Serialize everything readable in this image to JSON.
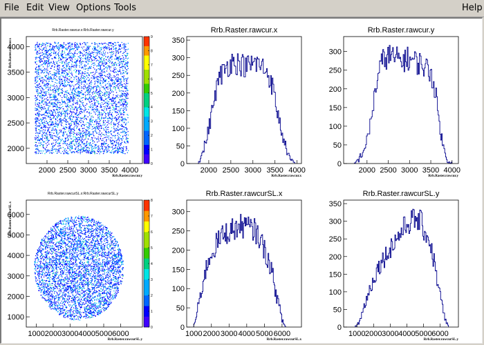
{
  "menu": {
    "file": "File",
    "edit": "Edit",
    "view": "View",
    "options": "Options",
    "tools": "Tools",
    "help": "Help"
  },
  "colors": {
    "histogram_line": "#00008b",
    "frame": "#000000",
    "background": "#ffffff",
    "palette": [
      "#3f00ff",
      "#0000ff",
      "#0066ff",
      "#00aaff",
      "#00e5e5",
      "#00d080",
      "#33cc00",
      "#a0e000",
      "#ffff00",
      "#ff9900",
      "#ff3300"
    ]
  },
  "chart_data": [
    {
      "type": "heatmap",
      "title": "Rrb.Raster.rawcur.x:Rrb.Raster.rawcur.y",
      "xlabel": "Rrb.Raster.rawcur.y",
      "ylabel": "Rrb.Raster.rawcur.x",
      "xlim": [
        1500,
        4300
      ],
      "ylim": [
        1700,
        4200
      ],
      "xticks": [
        2000,
        2500,
        3000,
        3500,
        4000
      ],
      "yticks": [
        2000,
        2500,
        3000,
        3500,
        4000
      ],
      "zticks": [
        0,
        1,
        2,
        3,
        4,
        5,
        6,
        7,
        8,
        9
      ],
      "shape": "square",
      "x_range": [
        1700,
        3950
      ],
      "y_range": [
        1900,
        4100
      ]
    },
    {
      "type": "histogram",
      "title": "Rrb.Raster.rawcur.x",
      "xlabel": "Rrb.Raster.rawcur.x",
      "xlim": [
        1500,
        4100
      ],
      "ylim": [
        0,
        360
      ],
      "xticks": [
        2000,
        2500,
        3000,
        3500,
        4000
      ],
      "yticks": [
        0,
        50,
        100,
        150,
        200,
        250,
        300,
        350
      ],
      "profile_x": [
        1750,
        1850,
        1950,
        2050,
        2150,
        2250,
        2350,
        2450,
        2550,
        2650,
        2750,
        2850,
        2950,
        3050,
        3150,
        3250,
        3350,
        3450,
        3550,
        3650,
        3750,
        3850,
        3950
      ],
      "profile_y": [
        0,
        25,
        70,
        130,
        200,
        245,
        265,
        280,
        290,
        285,
        280,
        275,
        280,
        285,
        280,
        270,
        255,
        215,
        150,
        90,
        45,
        10,
        0
      ]
    },
    {
      "type": "histogram",
      "title": "Rrb.Raster.rawcur.y",
      "xlabel": "Rrb.Raster.rawcur.y",
      "xlim": [
        1450,
        4150
      ],
      "ylim": [
        0,
        340
      ],
      "xticks": [
        2000,
        2500,
        3000,
        3500,
        4000
      ],
      "yticks": [
        0,
        50,
        100,
        150,
        200,
        250,
        300
      ],
      "profile_x": [
        1700,
        1800,
        1900,
        2000,
        2100,
        2200,
        2300,
        2400,
        2500,
        2600,
        2700,
        2800,
        2900,
        3000,
        3100,
        3200,
        3300,
        3400,
        3500,
        3600,
        3700,
        3800,
        3900,
        4000
      ],
      "profile_y": [
        0,
        10,
        30,
        60,
        120,
        200,
        255,
        280,
        290,
        285,
        280,
        275,
        280,
        280,
        275,
        270,
        265,
        255,
        245,
        200,
        110,
        40,
        8,
        0
      ]
    },
    {
      "type": "heatmap",
      "title": "Rrb.Raster.rawcurSL.x:Rrb.Raster.rawcurSL.y",
      "xlabel": "Rrb.Raster.rawcurSL.y",
      "ylabel": "Rrb.Raster.rawcurSL.x",
      "xlim": [
        400,
        7300
      ],
      "ylim": [
        500,
        6700
      ],
      "xticks": [
        1000,
        2000,
        3000,
        4000,
        5000,
        6000
      ],
      "yticks": [
        1000,
        2000,
        3000,
        4000,
        5000,
        6000
      ],
      "zticks": [
        0,
        1,
        2,
        3,
        4,
        5,
        6,
        7,
        8
      ],
      "shape": "circle",
      "center": [
        3500,
        3400
      ],
      "radius": [
        2650,
        2550
      ]
    },
    {
      "type": "histogram",
      "title": "Rrb.Raster.rawcurSL.x",
      "xlabel": "Rrb.Raster.rawcurSL.x",
      "xlim": [
        600,
        7100
      ],
      "ylim": [
        0,
        330
      ],
      "xticks": [
        1000,
        2000,
        3000,
        4000,
        5000,
        6000
      ],
      "yticks": [
        0,
        50,
        100,
        150,
        200,
        250,
        300
      ],
      "profile_x": [
        1000,
        1200,
        1500,
        1800,
        2100,
        2400,
        2700,
        3000,
        3300,
        3600,
        3900,
        4200,
        4500,
        4800,
        5100,
        5400,
        5700,
        6000,
        6200
      ],
      "profile_y": [
        0,
        40,
        110,
        170,
        200,
        225,
        240,
        250,
        255,
        260,
        265,
        255,
        250,
        225,
        190,
        150,
        80,
        20,
        0
      ]
    },
    {
      "type": "histogram",
      "title": "Rrb.Raster.rawcurSL.y",
      "xlabel": "Rrb.Raster.rawcurSL.y",
      "xlim": [
        200,
        7100
      ],
      "ylim": [
        0,
        360
      ],
      "xticks": [
        1000,
        2000,
        3000,
        4000,
        5000,
        6000
      ],
      "yticks": [
        0,
        50,
        100,
        150,
        200,
        250,
        300,
        350
      ],
      "profile_x": [
        900,
        1200,
        1500,
        1800,
        2100,
        2400,
        2700,
        3000,
        3300,
        3600,
        3900,
        4200,
        4500,
        4800,
        5100,
        5400,
        5700,
        6000,
        6300,
        6500
      ],
      "profile_y": [
        0,
        20,
        70,
        110,
        150,
        180,
        200,
        225,
        245,
        265,
        285,
        300,
        305,
        300,
        270,
        240,
        170,
        90,
        20,
        0
      ]
    }
  ]
}
